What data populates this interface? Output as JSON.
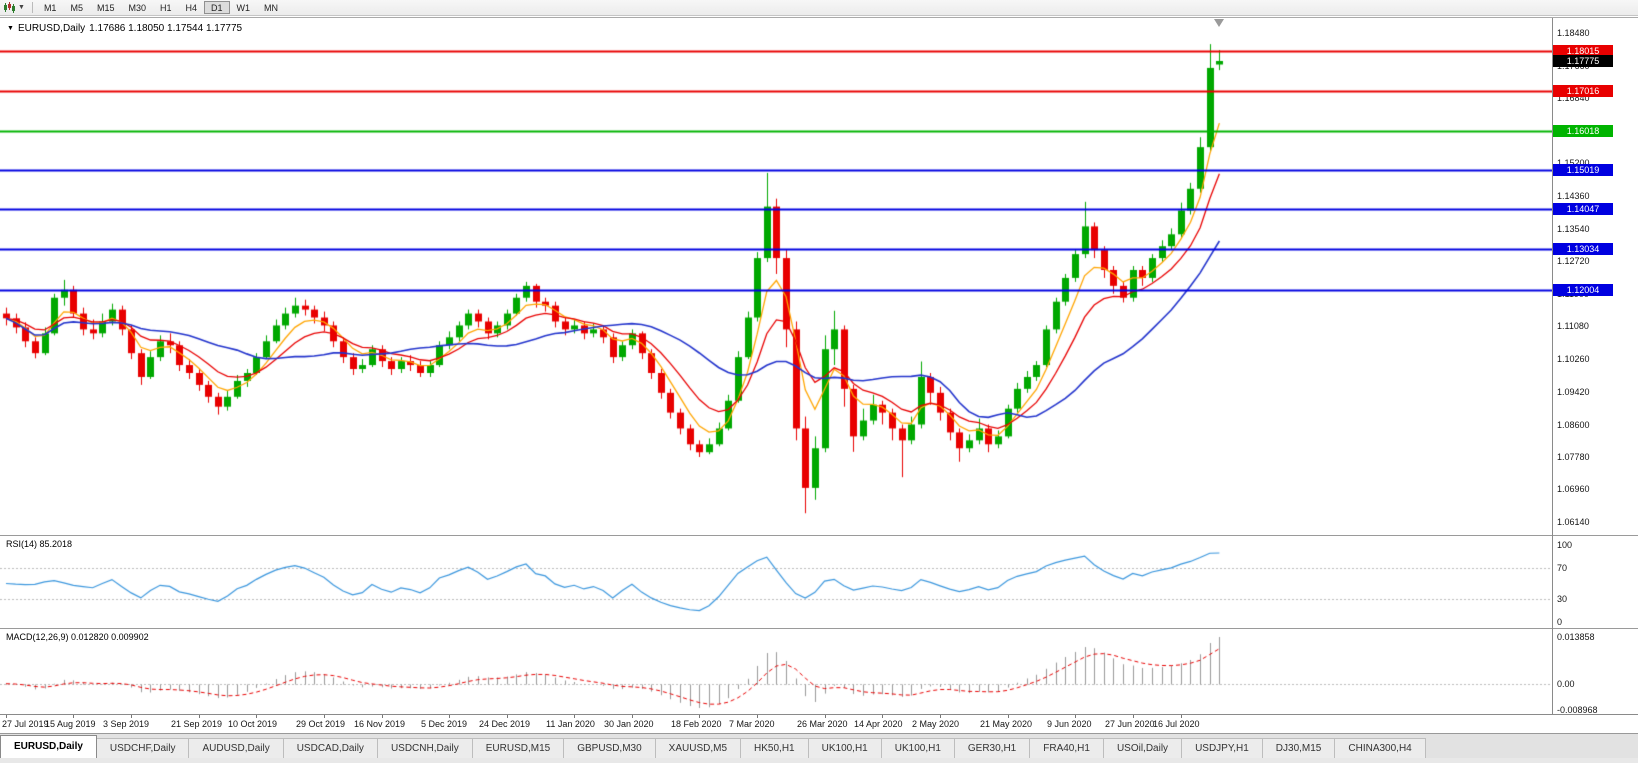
{
  "toolbar": {
    "timeframes": [
      "M1",
      "M5",
      "M15",
      "M30",
      "H1",
      "H4",
      "D1",
      "W1",
      "MN"
    ],
    "active_timeframe": "D1",
    "chart_type_icon": "candlestick-chart-icon",
    "dropdown_icon": "chevron-down-icon"
  },
  "chart": {
    "symbol_period": "EURUSD,Daily",
    "title_ohlc": "1.17686 1.18050 1.17544 1.17775"
  },
  "colors": {
    "bull": "#00A800",
    "bear": "#E80000",
    "ma_fast": "#FFA500",
    "ma_mid": "#E80000",
    "ma_slow": "#2233CC",
    "rsi_line": "#3A96DD",
    "macd_hist": "#999999",
    "macd_signal": "#E80000",
    "current_price_bg": "#000000",
    "grid_dash": "#bbbbbb"
  },
  "chart_data": {
    "type": "candlestick",
    "symbol": "EURUSD",
    "timeframe": "Daily",
    "current_ohlc": {
      "open": "1.17686",
      "high": "1.18050",
      "low": "1.17544",
      "close": "1.17775"
    },
    "current_price": {
      "price": 1.17775,
      "label": "1.17775"
    },
    "y_axis": {
      "min": 1.0614,
      "max": 1.1848,
      "ticks": [
        "1.18480",
        "1.17660",
        "1.16840",
        "1.16020",
        "1.15200",
        "1.14360",
        "1.13540",
        "1.12720",
        "1.11900",
        "1.11080",
        "1.10260",
        "1.09420",
        "1.08600",
        "1.07780",
        "1.06960",
        "1.06140"
      ]
    },
    "hlines": [
      {
        "price": 1.18015,
        "label": "1.18015",
        "color": "#E80000"
      },
      {
        "price": 1.17016,
        "label": "1.17016",
        "color": "#E80000"
      },
      {
        "price": 1.16018,
        "label": "1.16018",
        "color": "#00B400"
      },
      {
        "price": 1.15019,
        "label": "1.15019",
        "color": "#0000E0"
      },
      {
        "price": 1.14047,
        "label": "1.14047",
        "color": "#0000E0"
      },
      {
        "price": 1.13034,
        "label": "1.13034",
        "color": "#0000E0"
      },
      {
        "price": 1.12004,
        "label": "1.12004",
        "color": "#0000E0"
      }
    ],
    "x_labels": [
      {
        "label": "27 Jul 2019",
        "i": 0
      },
      {
        "label": "15 Aug 2019",
        "i": 7
      },
      {
        "label": "3 Sep 2019",
        "i": 13
      },
      {
        "label": "21 Sep 2019",
        "i": 20
      },
      {
        "label": "10 Oct 2019",
        "i": 26
      },
      {
        "label": "29 Oct 2019",
        "i": 33
      },
      {
        "label": "16 Nov 2019",
        "i": 39
      },
      {
        "label": "5 Dec 2019",
        "i": 46
      },
      {
        "label": "24 Dec 2019",
        "i": 52
      },
      {
        "label": "11 Jan 2020",
        "i": 59
      },
      {
        "label": "30 Jan 2020",
        "i": 65
      },
      {
        "label": "18 Feb 2020",
        "i": 72
      },
      {
        "label": "7 Mar 2020",
        "i": 78
      },
      {
        "label": "26 Mar 2020",
        "i": 85
      },
      {
        "label": "14 Apr 2020",
        "i": 91
      },
      {
        "label": "2 May 2020",
        "i": 97
      },
      {
        "label": "21 May 2020",
        "i": 104
      },
      {
        "label": "9 Jun 2020",
        "i": 111
      },
      {
        "label": "27 Jun 2020",
        "i": 117
      },
      {
        "label": "16 Jul 2020",
        "i": 122
      }
    ],
    "ohlc": [
      [
        1.114,
        1.1155,
        1.111,
        1.1128
      ],
      [
        1.1128,
        1.114,
        1.109,
        1.1105
      ],
      [
        1.1105,
        1.1118,
        1.1055,
        1.107
      ],
      [
        1.107,
        1.108,
        1.1027,
        1.104
      ],
      [
        1.104,
        1.1105,
        1.1035,
        1.109
      ],
      [
        1.109,
        1.119,
        1.1085,
        1.118
      ],
      [
        1.118,
        1.1225,
        1.116,
        1.12
      ],
      [
        1.12,
        1.121,
        1.113,
        1.114
      ],
      [
        1.114,
        1.1155,
        1.1085,
        1.11
      ],
      [
        1.11,
        1.1125,
        1.1075,
        1.109
      ],
      [
        1.109,
        1.114,
        1.108,
        1.112
      ],
      [
        1.112,
        1.1165,
        1.111,
        1.115
      ],
      [
        1.115,
        1.116,
        1.1085,
        1.11
      ],
      [
        1.11,
        1.111,
        1.1025,
        1.104
      ],
      [
        1.104,
        1.105,
        1.096,
        1.098
      ],
      [
        1.098,
        1.1045,
        1.0975,
        1.103
      ],
      [
        1.103,
        1.1085,
        1.102,
        1.107
      ],
      [
        1.107,
        1.109,
        1.104,
        1.106
      ],
      [
        1.106,
        1.107,
        1.0995,
        1.101
      ],
      [
        1.101,
        1.1025,
        1.0975,
        1.099
      ],
      [
        1.099,
        1.1,
        1.0945,
        1.096
      ],
      [
        1.096,
        1.097,
        1.0915,
        1.093
      ],
      [
        1.093,
        1.094,
        1.0885,
        1.0905
      ],
      [
        1.0905,
        1.0945,
        1.0895,
        1.093
      ],
      [
        1.093,
        1.0985,
        1.0925,
        1.097
      ],
      [
        1.097,
        1.1,
        1.0955,
        1.099
      ],
      [
        1.099,
        1.104,
        1.0985,
        1.103
      ],
      [
        1.103,
        1.1085,
        1.1025,
        1.107
      ],
      [
        1.107,
        1.1125,
        1.1065,
        1.111
      ],
      [
        1.111,
        1.1155,
        1.11,
        1.114
      ],
      [
        1.114,
        1.118,
        1.113,
        1.116
      ],
      [
        1.116,
        1.1175,
        1.1135,
        1.115
      ],
      [
        1.115,
        1.116,
        1.1115,
        1.113
      ],
      [
        1.113,
        1.1145,
        1.1095,
        1.111
      ],
      [
        1.111,
        1.112,
        1.1055,
        1.107
      ],
      [
        1.107,
        1.108,
        1.1015,
        1.103
      ],
      [
        1.103,
        1.104,
        1.0985,
        1.1
      ],
      [
        1.1,
        1.1025,
        1.099,
        1.101
      ],
      [
        1.101,
        1.106,
        1.1005,
        1.105
      ],
      [
        1.105,
        1.106,
        1.1005,
        1.102
      ],
      [
        1.102,
        1.103,
        1.0985,
        1.1
      ],
      [
        1.1,
        1.103,
        1.099,
        1.102
      ],
      [
        1.102,
        1.1035,
        1.0995,
        1.101
      ],
      [
        1.101,
        1.102,
        1.098,
        1.099
      ],
      [
        1.099,
        1.102,
        1.098,
        1.101
      ],
      [
        1.101,
        1.107,
        1.1005,
        1.106
      ],
      [
        1.106,
        1.1095,
        1.105,
        1.108
      ],
      [
        1.108,
        1.112,
        1.107,
        1.111
      ],
      [
        1.111,
        1.115,
        1.11,
        1.114
      ],
      [
        1.114,
        1.115,
        1.1105,
        1.112
      ],
      [
        1.112,
        1.113,
        1.1075,
        1.109
      ],
      [
        1.109,
        1.112,
        1.108,
        1.111
      ],
      [
        1.111,
        1.115,
        1.11,
        1.114
      ],
      [
        1.114,
        1.119,
        1.1135,
        1.118
      ],
      [
        1.118,
        1.122,
        1.117,
        1.121
      ],
      [
        1.121,
        1.1215,
        1.1155,
        1.117
      ],
      [
        1.117,
        1.118,
        1.1145,
        1.116
      ],
      [
        1.116,
        1.117,
        1.1105,
        1.112
      ],
      [
        1.112,
        1.113,
        1.1085,
        1.11
      ],
      [
        1.11,
        1.1125,
        1.109,
        1.111
      ],
      [
        1.111,
        1.112,
        1.1075,
        1.109
      ],
      [
        1.109,
        1.1115,
        1.108,
        1.11
      ],
      [
        1.11,
        1.111,
        1.1065,
        1.108
      ],
      [
        1.108,
        1.109,
        1.1015,
        1.103
      ],
      [
        1.103,
        1.107,
        1.102,
        1.106
      ],
      [
        1.106,
        1.11,
        1.105,
        1.109
      ],
      [
        1.109,
        1.1095,
        1.1025,
        1.104
      ],
      [
        1.104,
        1.105,
        1.0975,
        1.099
      ],
      [
        1.099,
        1.1,
        1.0925,
        1.094
      ],
      [
        1.094,
        1.095,
        1.0875,
        1.089
      ],
      [
        1.089,
        1.09,
        1.0835,
        1.085
      ],
      [
        1.085,
        1.086,
        1.0795,
        1.081
      ],
      [
        1.081,
        1.082,
        1.0778,
        1.079
      ],
      [
        1.079,
        1.0825,
        1.0785,
        1.081
      ],
      [
        1.081,
        1.0865,
        1.0805,
        1.085
      ],
      [
        1.085,
        1.0935,
        1.0845,
        1.092
      ],
      [
        1.092,
        1.1045,
        1.0915,
        1.103
      ],
      [
        1.103,
        1.1145,
        1.1025,
        1.113
      ],
      [
        1.113,
        1.1295,
        1.112,
        1.128
      ],
      [
        1.128,
        1.1495,
        1.127,
        1.141
      ],
      [
        1.141,
        1.143,
        1.124,
        1.128
      ],
      [
        1.128,
        1.13,
        1.1055,
        1.11
      ],
      [
        1.11,
        1.112,
        1.082,
        1.085
      ],
      [
        1.085,
        1.088,
        1.0636,
        1.07
      ],
      [
        1.07,
        1.083,
        1.067,
        1.08
      ],
      [
        1.08,
        1.1085,
        1.079,
        1.105
      ],
      [
        1.105,
        1.1147,
        1.101,
        1.11
      ],
      [
        1.11,
        1.111,
        1.0905,
        1.095
      ],
      [
        1.095,
        1.096,
        1.0791,
        1.083
      ],
      [
        1.083,
        1.09,
        1.082,
        1.087
      ],
      [
        1.087,
        1.0935,
        1.086,
        1.091
      ],
      [
        1.091,
        1.092,
        1.086,
        1.089
      ],
      [
        1.089,
        1.09,
        1.082,
        1.085
      ],
      [
        1.085,
        1.086,
        1.0727,
        1.082
      ],
      [
        1.082,
        1.088,
        1.081,
        1.086
      ],
      [
        1.086,
        1.1019,
        1.085,
        1.098
      ],
      [
        1.098,
        1.099,
        1.091,
        1.094
      ],
      [
        1.094,
        1.0955,
        1.087,
        1.089
      ],
      [
        1.089,
        1.09,
        1.082,
        1.084
      ],
      [
        1.084,
        1.085,
        1.0766,
        1.08
      ],
      [
        1.08,
        1.0835,
        1.079,
        1.082
      ],
      [
        1.082,
        1.0875,
        1.081,
        1.085
      ],
      [
        1.085,
        1.086,
        1.079,
        1.081
      ],
      [
        1.081,
        1.0845,
        1.08,
        1.083
      ],
      [
        1.083,
        1.091,
        1.0825,
        1.09
      ],
      [
        1.09,
        1.0965,
        1.089,
        1.095
      ],
      [
        1.095,
        1.0995,
        1.094,
        1.098
      ],
      [
        1.098,
        1.102,
        1.097,
        1.101
      ],
      [
        1.101,
        1.111,
        1.1005,
        1.11
      ],
      [
        1.11,
        1.118,
        1.109,
        1.117
      ],
      [
        1.117,
        1.124,
        1.116,
        1.123
      ],
      [
        1.123,
        1.13,
        1.122,
        1.129
      ],
      [
        1.129,
        1.1422,
        1.128,
        1.136
      ],
      [
        1.136,
        1.137,
        1.128,
        1.13
      ],
      [
        1.13,
        1.131,
        1.123,
        1.125
      ],
      [
        1.125,
        1.126,
        1.119,
        1.121
      ],
      [
        1.121,
        1.122,
        1.1168,
        1.118
      ],
      [
        1.118,
        1.126,
        1.117,
        1.125
      ],
      [
        1.125,
        1.126,
        1.121,
        1.123
      ],
      [
        1.123,
        1.129,
        1.122,
        1.128
      ],
      [
        1.128,
        1.1325,
        1.127,
        1.131
      ],
      [
        1.131,
        1.1355,
        1.13,
        1.134
      ],
      [
        1.134,
        1.142,
        1.133,
        1.14
      ],
      [
        1.14,
        1.147,
        1.139,
        1.1455
      ],
      [
        1.1455,
        1.1585,
        1.1445,
        1.156
      ],
      [
        1.156,
        1.182,
        1.155,
        1.176
      ],
      [
        1.17686,
        1.1805,
        1.17544,
        1.17775
      ]
    ],
    "indicators": {
      "rsi": {
        "label": "RSI(14)",
        "value": "85.2018",
        "axis_ticks": [
          "100",
          "70",
          "30",
          "0"
        ],
        "levels": [
          70,
          30
        ]
      },
      "macd": {
        "label": "MACD(12,26,9)",
        "value_line": "0.012820",
        "value_signal": "0.009902",
        "axis_ticks": [
          "0.013858",
          "0.00",
          "-0.008968"
        ]
      }
    }
  },
  "tabs": {
    "active_index": 0,
    "items": [
      "EURUSD,Daily",
      "USDCHF,Daily",
      "AUDUSD,Daily",
      "USDCAD,Daily",
      "USDCNH,Daily",
      "EURUSD,M15",
      "GBPUSD,M30",
      "XAUUSD,M5",
      "HK50,H1",
      "UK100,H1",
      "UK100,H1",
      "GER30,H1",
      "FRA40,H1",
      "USOil,Daily",
      "USDJPY,H1",
      "DJ30,M15",
      "CHINA300,H4"
    ]
  }
}
